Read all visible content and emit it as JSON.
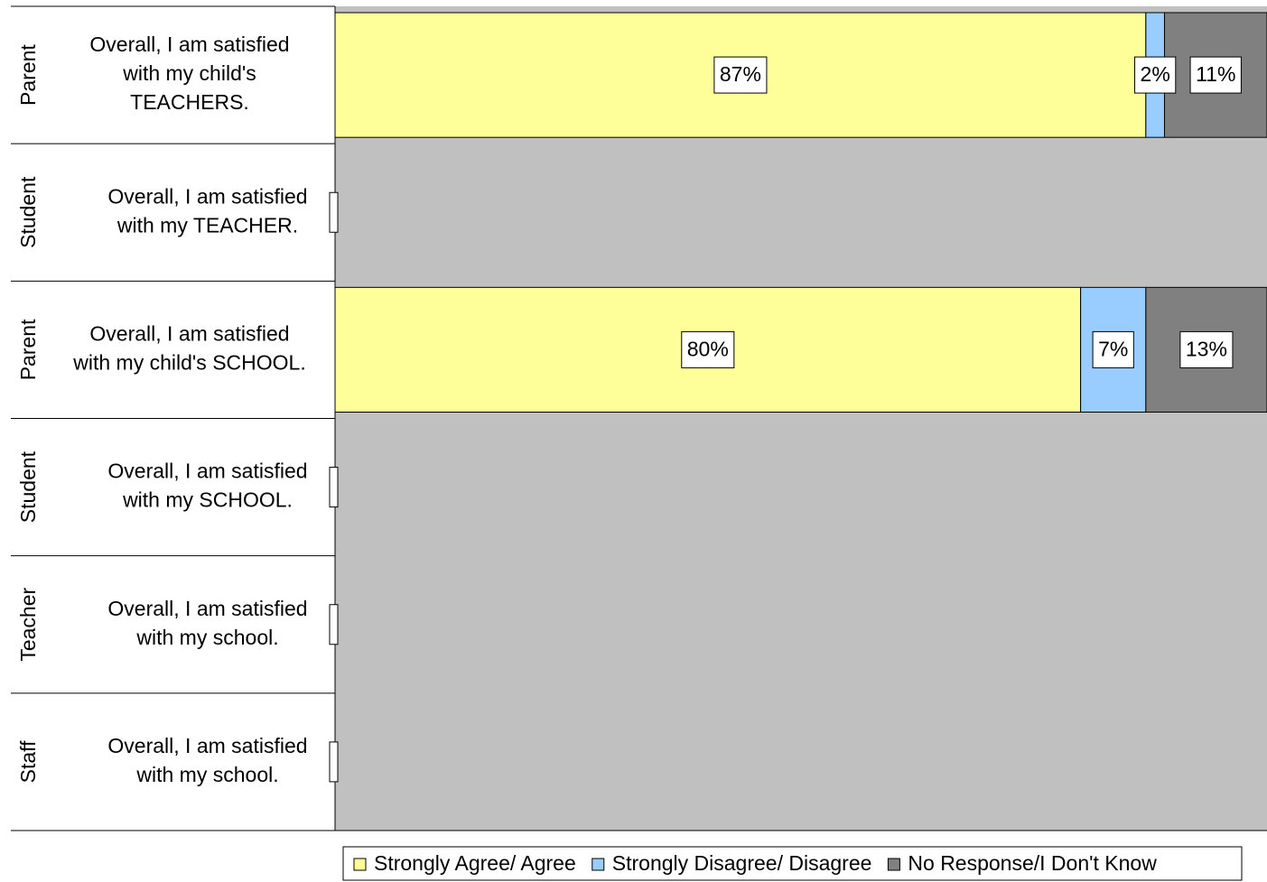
{
  "chart_data": {
    "type": "stacked-bar-horizontal",
    "groups": [
      "Parent",
      "Student",
      "Parent",
      "Student",
      "Teacher",
      "Staff"
    ],
    "categories": [
      "Overall, I am satisfied\nwith my child's\nTEACHERS.",
      "Overall, I am satisfied\nwith my TEACHER.",
      "Overall, I am satisfied\nwith my child's SCHOOL.",
      "Overall, I am satisfied\nwith my SCHOOL.",
      "Overall, I am satisfied\nwith my school.",
      "Overall, I am satisfied\nwith my school."
    ],
    "xlim": [
      0,
      100
    ],
    "series": [
      {
        "name": "Strongly Agree/ Agree",
        "color": "#ffff99",
        "values": [
          87,
          null,
          80,
          null,
          null,
          null
        ],
        "value_labels": [
          "87%",
          null,
          "80%",
          null,
          null,
          null
        ]
      },
      {
        "name": "Strongly Disagree/ Disagree",
        "color": "#99ccff",
        "values": [
          2,
          null,
          7,
          null,
          null,
          null
        ],
        "value_labels": [
          "2%",
          null,
          "7%",
          null,
          null,
          null
        ]
      },
      {
        "name": "No Response/I Don't Know",
        "color": "#808080",
        "values": [
          11,
          null,
          13,
          null,
          null,
          null
        ],
        "value_labels": [
          "11%",
          null,
          "13%",
          null,
          null,
          null
        ]
      }
    ],
    "legend": "bottom"
  }
}
